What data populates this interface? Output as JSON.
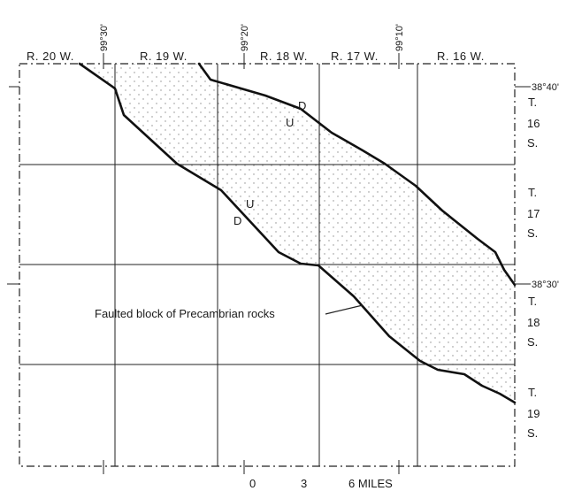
{
  "ranges": [
    "R. 20 W.",
    "R. 19 W.",
    "R. 18 W.",
    "R. 17 W.",
    "R. 16 W."
  ],
  "townships": [
    {
      "t": "T.",
      "num": "16",
      "s": "S."
    },
    {
      "t": "T.",
      "num": "17",
      "s": "S."
    },
    {
      "t": "T.",
      "num": "18",
      "s": "S."
    },
    {
      "t": "T.",
      "num": "19",
      "s": "S."
    }
  ],
  "longitudes": [
    "99°30'",
    "99°20'",
    "99°10'"
  ],
  "latitudes": [
    "38°40'",
    "38°30'"
  ],
  "fault_labels": {
    "upper": {
      "down": "D",
      "up": "U"
    },
    "lower": {
      "up": "U",
      "down": "D"
    }
  },
  "block_label": "Faulted block of Precambrian rocks",
  "scale": {
    "ticks": [
      "0",
      "3",
      "6 MILES"
    ]
  }
}
